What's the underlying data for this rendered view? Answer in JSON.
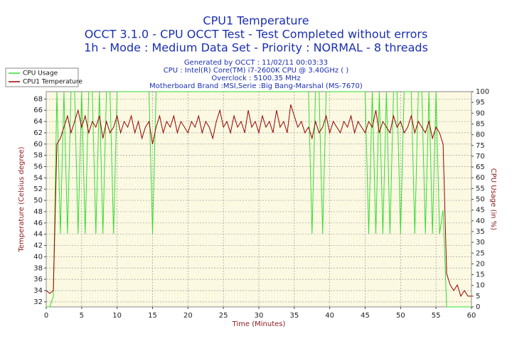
{
  "chart_data": {
    "type": "line",
    "title": "CPU1 Temperature",
    "title_lines": [
      "OCCT 3.1.0 - CPU OCCT Test - Test Completed without errors",
      "1h - Mode : Medium Data Set - Priority : NORMAL - 8 threads"
    ],
    "subtitle_lines": [
      "Generated by OCCT : 11/02/11 00:03:33",
      "CPU : Intel(R) Core(TM) i7-2600K CPU @ 3.40GHz (  )",
      "Overclock : 5100.35 MHz",
      "Motherboard Brand :MSI,Serie :Big Bang-Marshal (MS-7670)"
    ],
    "xlabel": "Time (Minutes)",
    "ylabel": "Temperature (Celsius degree)",
    "y2label": "CPU Usage (in %)",
    "x": [
      0,
      0.5,
      1,
      1.5,
      2,
      2.5,
      3,
      3.5,
      4,
      4.5,
      5,
      5.5,
      6,
      6.5,
      7,
      7.5,
      8,
      8.5,
      9,
      9.5,
      10,
      10.5,
      11,
      11.5,
      12,
      12.5,
      13,
      13.5,
      14,
      14.5,
      15,
      15.5,
      16,
      16.5,
      17,
      17.5,
      18,
      18.5,
      19,
      19.5,
      20,
      20.5,
      21,
      21.5,
      22,
      22.5,
      23,
      23.5,
      24,
      24.5,
      25,
      25.5,
      26,
      26.5,
      27,
      27.5,
      28,
      28.5,
      29,
      29.5,
      30,
      30.5,
      31,
      31.5,
      32,
      32.5,
      33,
      33.5,
      34,
      34.5,
      35,
      35.5,
      36,
      36.5,
      37,
      37.5,
      38,
      38.5,
      39,
      39.5,
      40,
      40.5,
      41,
      41.5,
      42,
      42.5,
      43,
      43.5,
      44,
      44.5,
      45,
      45.5,
      46,
      46.5,
      47,
      47.5,
      48,
      48.5,
      49,
      49.5,
      50,
      50.5,
      51,
      51.5,
      52,
      52.5,
      53,
      53.5,
      54,
      54.5,
      55,
      55.5,
      56,
      56.5,
      57,
      57.5,
      58,
      58.5,
      59,
      59.5,
      60
    ],
    "series": [
      {
        "name": "CPU Usage",
        "color": "#33dd33",
        "axis": "y2",
        "values": [
          0,
          0,
          5,
          100,
          34,
          100,
          34,
          100,
          100,
          34,
          100,
          34,
          100,
          100,
          34,
          100,
          34,
          100,
          100,
          34,
          100,
          100,
          100,
          100,
          100,
          100,
          100,
          100,
          100,
          100,
          34,
          100,
          100,
          100,
          100,
          100,
          100,
          100,
          100,
          100,
          100,
          100,
          100,
          100,
          100,
          100,
          100,
          100,
          100,
          100,
          100,
          100,
          100,
          100,
          100,
          100,
          100,
          100,
          100,
          100,
          100,
          100,
          100,
          100,
          100,
          100,
          100,
          100,
          100,
          100,
          100,
          100,
          100,
          100,
          100,
          34,
          100,
          100,
          34,
          100,
          100,
          100,
          100,
          100,
          100,
          100,
          100,
          100,
          100,
          100,
          100,
          34,
          100,
          34,
          100,
          34,
          100,
          34,
          100,
          100,
          34,
          100,
          100,
          100,
          34,
          100,
          100,
          34,
          100,
          34,
          100,
          34,
          45,
          0,
          0,
          0,
          0,
          0,
          0,
          0,
          0
        ]
      },
      {
        "name": "CPU1 Temperature",
        "color": "#990000",
        "values": [
          34,
          33.5,
          34,
          60,
          61,
          63,
          65,
          62,
          64,
          66,
          63,
          65,
          62,
          64,
          63,
          65,
          61,
          64,
          62,
          63,
          65,
          62,
          64,
          63,
          65,
          62,
          64,
          61,
          63,
          64,
          60,
          63,
          65,
          62,
          64,
          63,
          65,
          62,
          64,
          63,
          62,
          64,
          63,
          65,
          62,
          64,
          63,
          61,
          64,
          66,
          63,
          64,
          62,
          65,
          63,
          64,
          62,
          66,
          63,
          64,
          62,
          65,
          63,
          64,
          62,
          66,
          63,
          64,
          62,
          67,
          65,
          63,
          64,
          62,
          63,
          61,
          64,
          62,
          63,
          65,
          62,
          64,
          63,
          62,
          64,
          63,
          65,
          62,
          64,
          63,
          62,
          64,
          63,
          66,
          62,
          64,
          63,
          62,
          65,
          63,
          64,
          62,
          63,
          65,
          62,
          64,
          63,
          62,
          64,
          61,
          63,
          62,
          60,
          37,
          35,
          34,
          35,
          33,
          34,
          33,
          33
        ]
      }
    ],
    "xlim": [
      0,
      60
    ],
    "xticks": [
      0,
      5,
      10,
      15,
      20,
      25,
      30,
      35,
      40,
      45,
      50,
      55,
      60
    ],
    "ylim": [
      31.1,
      69.3
    ],
    "yticks": [
      32,
      34,
      36,
      38,
      40,
      42,
      44,
      46,
      48,
      50,
      52,
      54,
      56,
      58,
      60,
      62,
      64,
      66,
      68
    ],
    "y2lim": [
      0,
      100
    ],
    "y2ticks": [
      0,
      5,
      10,
      15,
      20,
      25,
      30,
      35,
      40,
      45,
      50,
      55,
      60,
      65,
      70,
      75,
      80,
      85,
      90,
      95,
      100
    ],
    "grid": true,
    "legend": "top-left"
  }
}
